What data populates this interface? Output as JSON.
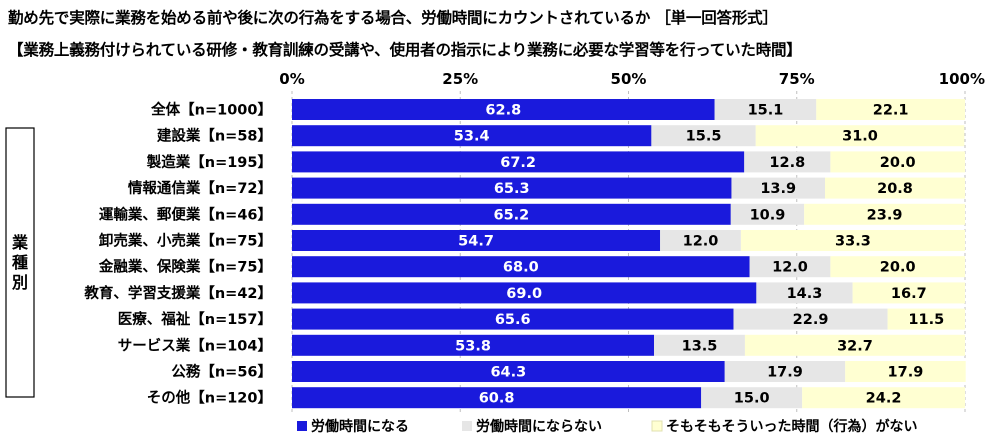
{
  "title": "勤め先で実際に業務を始める前や後に次の行為をする場合、労働時間にカウントされているか ［単一回答形式］",
  "subtitle": "【業務上義務付けられている研修・教育訓練の受講や、使用者の指示により業務に必要な学習等を行っていた時間】",
  "group_label": "業種別",
  "chart_data": {
    "type": "bar",
    "orientation": "horizontal",
    "stacked": true,
    "title": "勤め先で実際に業務を始める前や後に次の行為をする場合、労働時間にカウントされているか ［単一回答形式］",
    "xlim": [
      0,
      100
    ],
    "xticks": [
      "0%",
      "25%",
      "50%",
      "75%",
      "100%"
    ],
    "xtick_values": [
      0,
      25,
      50,
      75,
      100
    ],
    "legend_position": "bottom",
    "categories": [
      "全体【n=1000】",
      "建設業【n=58】",
      "製造業【n=195】",
      "情報通信業【n=72】",
      "運輸業、郵便業【n=46】",
      "卸売業、小売業【n=75】",
      "金融業、保険業【n=75】",
      "教育、学習支援業【n=42】",
      "医療、福祉【n=157】",
      "サービス業【n=104】",
      "公務【n=56】",
      "その他【n=120】"
    ],
    "series": [
      {
        "name": "労働時間になる",
        "color": "#1a1adc",
        "label_color": "#ffffff",
        "values": [
          62.8,
          53.4,
          67.2,
          65.3,
          65.2,
          54.7,
          68.0,
          69.0,
          65.6,
          53.8,
          64.3,
          60.8
        ]
      },
      {
        "name": "労働時間にならない",
        "color": "#e6e6e6",
        "label_color": "#000000",
        "values": [
          15.1,
          15.5,
          12.8,
          13.9,
          10.9,
          12.0,
          12.0,
          14.3,
          22.9,
          13.5,
          17.9,
          15.0
        ]
      },
      {
        "name": "そもそもそういった時間（行為）がない",
        "color": "#ffffd2",
        "label_color": "#000000",
        "values": [
          22.1,
          31.0,
          20.0,
          20.8,
          23.9,
          33.3,
          20.0,
          16.7,
          11.5,
          32.7,
          17.9,
          24.2
        ]
      }
    ]
  }
}
